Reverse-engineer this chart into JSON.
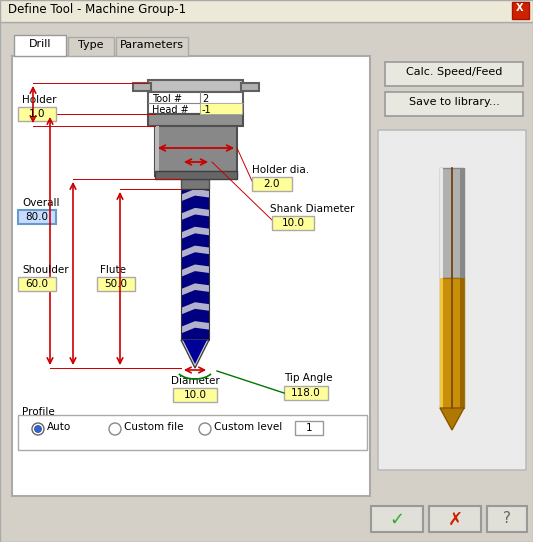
{
  "title": "Define Tool - Machine Group-1",
  "bg_color": "#d4d0c8",
  "fields": {
    "tool_num": "2",
    "head_num": "-1",
    "holder": "1.0",
    "overall": "80.0",
    "shoulder": "60.0",
    "flute": "50.0",
    "holder_dia": "2.0",
    "shank_dia": "10.0",
    "diameter": "10.0",
    "tip_angle": "118.0",
    "profile_level": "1"
  },
  "yellow_bg": "#ffff99",
  "selected_bg": "#c8dcff",
  "red_color": "#cc0000",
  "green_color": "#007700",
  "button_calc": "Calc. Speed/Feed",
  "button_save": "Save to library..."
}
